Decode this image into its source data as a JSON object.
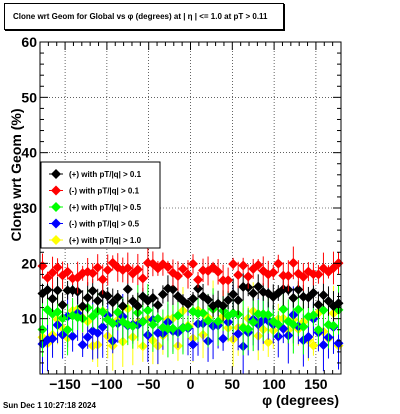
{
  "chart_data": {
    "type": "scatter",
    "title": "Clone wrt Geom for Global vs φ (degrees) at |  η  | <= 1.0 at pT > 0.11",
    "xlabel": "φ (degrees)",
    "ylabel": "Clone wrt Geom (%)",
    "xlim": [
      -180,
      180
    ],
    "ylim": [
      0,
      60
    ],
    "x_ticks": [
      -150,
      -100,
      -50,
      0,
      50,
      100,
      150
    ],
    "x_tick_labels": [
      "−150",
      "−100",
      "−50",
      "0",
      "50",
      "100",
      "150"
    ],
    "y_ticks": [
      10,
      20,
      30,
      40,
      50,
      60
    ],
    "y_tick_labels": [
      "10",
      "20",
      "30",
      "40",
      "50",
      "60"
    ],
    "grid": true,
    "legend_position": "center-left",
    "series": [
      {
        "name": "(+) with pT/|q| > 0.1",
        "color": "#000000",
        "marker": "diamond",
        "center": 14.0,
        "spread": 1.8,
        "err": 2.0,
        "seed": 11
      },
      {
        "name": "(-) with pT/|q| > 0.1",
        "color": "#ff0000",
        "marker": "diamond",
        "center": 18.5,
        "spread": 1.6,
        "err": 2.0,
        "seed": 23
      },
      {
        "name": "(+) with pT/|q| > 0.5",
        "color": "#00ff00",
        "marker": "diamond",
        "center": 10.0,
        "spread": 2.0,
        "err": 3.5,
        "seed": 37
      },
      {
        "name": "(-) with pT/|q| > 0.5",
        "color": "#0000ff",
        "marker": "diamond",
        "center": 8.0,
        "spread": 3.0,
        "err": 4.0,
        "seed": 41
      },
      {
        "name": "(+) with pT/|q| > 1.0",
        "color": "#ffff00",
        "marker": "diamond",
        "center": 8.5,
        "spread": 3.5,
        "err": 3.5,
        "seed": 53
      }
    ]
  },
  "footer": {
    "timestamp": "Sun Dec  1 10:27:18 2024"
  }
}
